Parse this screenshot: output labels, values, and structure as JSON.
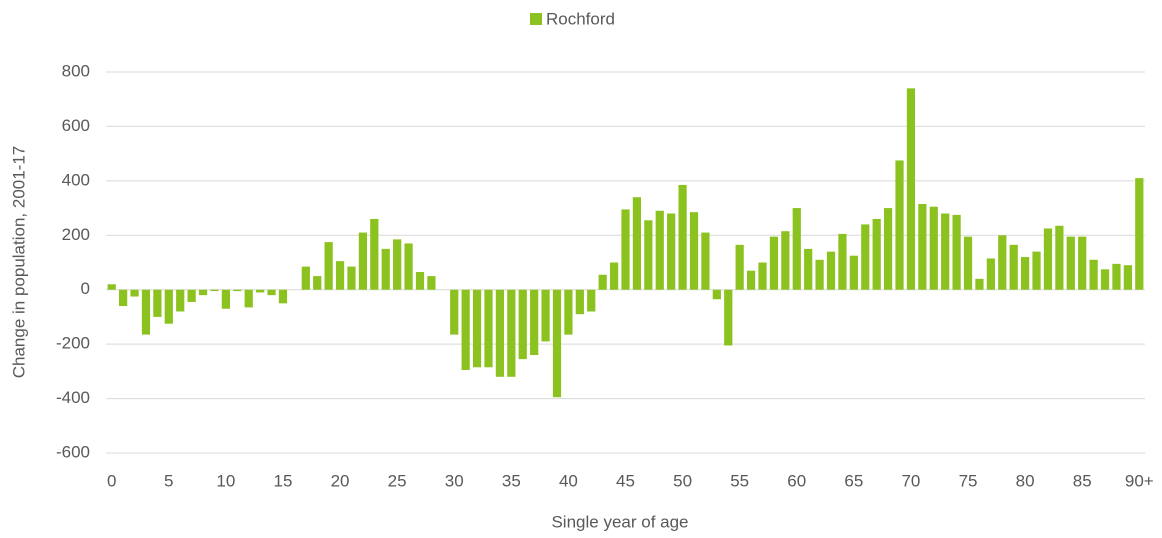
{
  "chart_data": {
    "type": "bar",
    "series": [
      {
        "name": "Rochford",
        "color": "#8cc220",
        "values": [
          20,
          -60,
          -25,
          -165,
          -100,
          -125,
          -80,
          -45,
          -20,
          -5,
          -70,
          -5,
          -65,
          -10,
          -20,
          -50,
          0,
          85,
          50,
          175,
          105,
          85,
          210,
          260,
          150,
          185,
          170,
          65,
          50,
          0,
          -165,
          -295,
          -285,
          -285,
          -320,
          -320,
          -255,
          -240,
          -190,
          -395,
          -165,
          -90,
          -80,
          55,
          100,
          295,
          340,
          255,
          290,
          280,
          385,
          285,
          210,
          -35,
          -205,
          165,
          70,
          100,
          195,
          215,
          300,
          150,
          110,
          140,
          205,
          125,
          240,
          260,
          300,
          475,
          740,
          315,
          305,
          280,
          275,
          195,
          40,
          115,
          200,
          165,
          120,
          140,
          225,
          235,
          195,
          195,
          110,
          75,
          95,
          90,
          410
        ]
      }
    ],
    "categories": [
      "0",
      null,
      null,
      null,
      null,
      "5",
      null,
      null,
      null,
      null,
      "10",
      null,
      null,
      null,
      null,
      "15",
      null,
      null,
      null,
      null,
      "20",
      null,
      null,
      null,
      null,
      "25",
      null,
      null,
      null,
      null,
      "30",
      null,
      null,
      null,
      null,
      "35",
      null,
      null,
      null,
      null,
      "40",
      null,
      null,
      null,
      null,
      "45",
      null,
      null,
      null,
      null,
      "50",
      null,
      null,
      null,
      null,
      "55",
      null,
      null,
      null,
      null,
      "60",
      null,
      null,
      null,
      null,
      "65",
      null,
      null,
      null,
      null,
      "70",
      null,
      null,
      null,
      null,
      "75",
      null,
      null,
      null,
      null,
      "80",
      null,
      null,
      null,
      null,
      "85",
      null,
      null,
      null,
      null,
      "90+"
    ],
    "x_label": "Single year of age",
    "y_label": "Change in population, 2001-17",
    "ylim": [
      -600,
      800
    ],
    "yticks": [
      -600,
      -400,
      -200,
      0,
      200,
      400,
      600,
      800
    ],
    "grid": true,
    "legend": "top"
  }
}
